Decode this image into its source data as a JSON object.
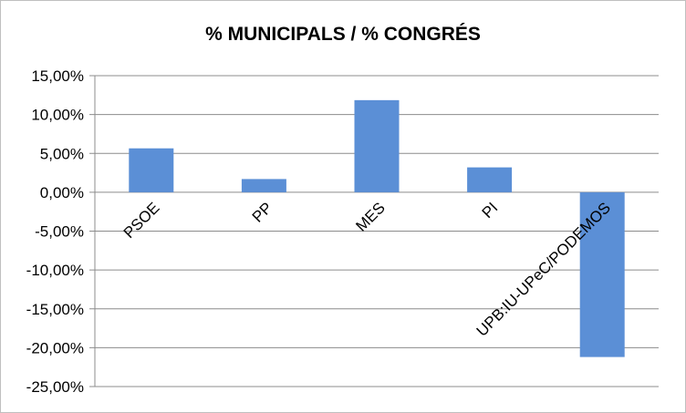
{
  "chart_data": {
    "type": "bar",
    "title": "% MUNICIPALS / % CONGRÉS",
    "categories": [
      "PSOE",
      "PP",
      "MES",
      "PI",
      "UPB:IU-UPeC/PODEMOS"
    ],
    "values": [
      5.65,
      1.7,
      11.85,
      3.2,
      -21.2
    ],
    "ytick_labels": [
      "15,00%",
      "10,00%",
      "5,00%",
      "0,00%",
      "-5,00%",
      "-10,00%",
      "-15,00%",
      "-20,00%",
      "-25,00%"
    ],
    "ylim": [
      -25,
      15
    ],
    "grid": true,
    "legend": "none",
    "bar_color": "#5b8fd6"
  }
}
